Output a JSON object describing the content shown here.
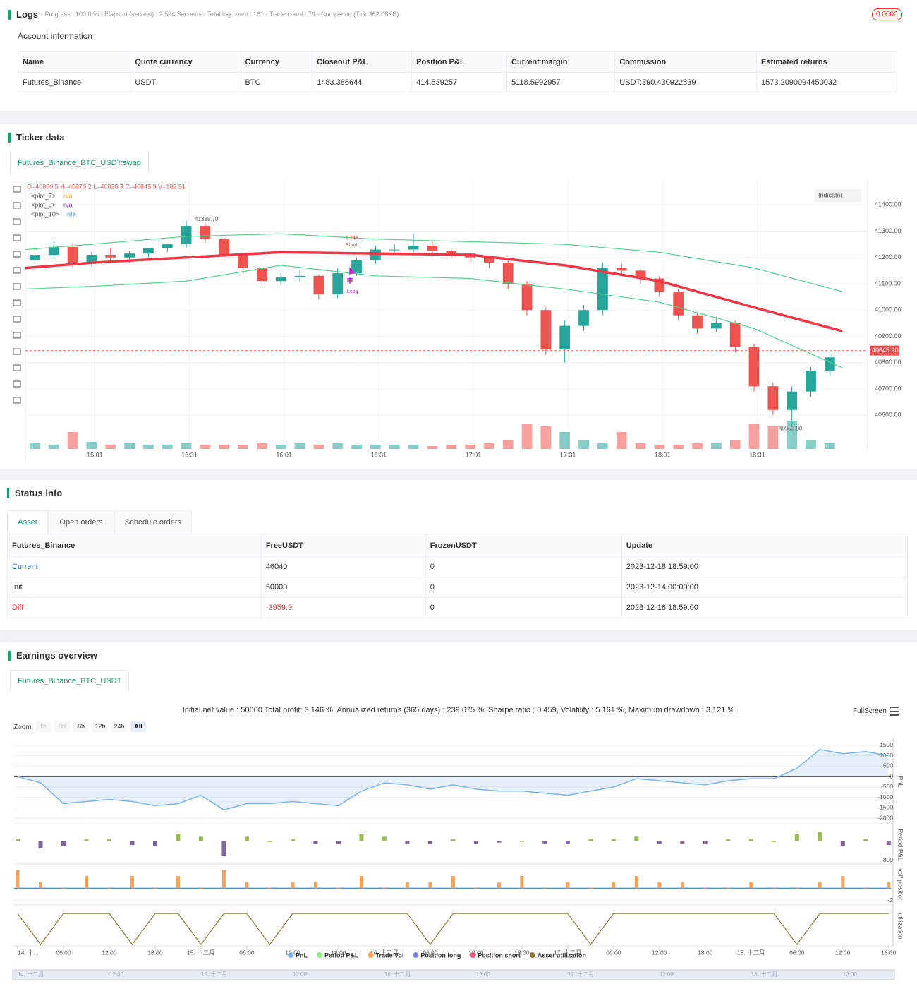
{
  "logs": {
    "title": "Logs",
    "summary": "- Progress : 100.0 % - Elapsed (second) : 2.594  Seconds - Total log count : 161 - Trade count : 79 - Completed (Tick 362.06KB)",
    "badge": "0.0000"
  },
  "account": {
    "title": "Account information",
    "headers": [
      "Name",
      "Quote currency",
      "Currency",
      "Closeout P&L",
      "Position P&L",
      "Current margin",
      "Commission",
      "Estimated returns"
    ],
    "rows": [
      [
        "Futures_Binance",
        "USDT",
        "BTC",
        "1483.386644",
        "414.539257",
        "5118.5992957",
        "USDT:390.430922839",
        "1573.2090094450032"
      ]
    ]
  },
  "ticker": {
    "title": "Ticker data",
    "tab": "Futures_Binance_BTC_USDT:swap",
    "ohlc": "O=40850.5 H=40870.2 L=40828.3 C=40845.9 V=182.51",
    "plots": [
      {
        "name": "<plot_7>",
        "value": "n/a",
        "color": "#f5a623"
      },
      {
        "name": "<plot_9>",
        "value": "n/a",
        "color": "#9b30c8"
      },
      {
        "name": "<plot_10>",
        "value": "n/a",
        "color": "#2f80ed"
      }
    ],
    "indicator": "Indicator",
    "trades": {
      "qty": "1.243",
      "short": "Short",
      "long": "Long"
    },
    "chart_data": {
      "type": "candlestick",
      "xlim": [
        39,
        306
      ],
      "ylim": [
        40520,
        41500
      ],
      "xticks": [
        {
          "value": 61,
          "label": "15:01"
        },
        {
          "value": 91,
          "label": "15:31"
        },
        {
          "value": 121,
          "label": "16:01"
        },
        {
          "value": 151,
          "label": "16:31"
        },
        {
          "value": 181,
          "label": "17:01"
        },
        {
          "value": 211,
          "label": "17:31"
        },
        {
          "value": 241,
          "label": "18:01"
        },
        {
          "value": 271,
          "label": "18:31"
        }
      ],
      "yticks": [
        {
          "value": 40600,
          "label": "40600.00"
        },
        {
          "value": 40700,
          "label": "40700.00"
        },
        {
          "value": 40800,
          "label": "40800.00"
        },
        {
          "value": 40900,
          "label": "40900.00"
        },
        {
          "value": 41000,
          "label": "41000.00"
        },
        {
          "value": 41100,
          "label": "41100.00"
        },
        {
          "value": 41200,
          "label": "41200.00"
        },
        {
          "value": 41300,
          "label": "41300.00"
        },
        {
          "value": 41400,
          "label": "41400.00"
        }
      ],
      "grid": true,
      "x": [
        42,
        48,
        54,
        60,
        66,
        72,
        78,
        84,
        90,
        96,
        102,
        108,
        114,
        120,
        126,
        132,
        138,
        144,
        150,
        156,
        162,
        168,
        174,
        180,
        186,
        192,
        198,
        204,
        210,
        216,
        222,
        228,
        234,
        240,
        246,
        252,
        258,
        264,
        270,
        276,
        282,
        288,
        294
      ],
      "open": [
        41190,
        41210,
        41240,
        41180,
        41210,
        41200,
        41215,
        41235,
        41250,
        41320,
        41270,
        41210,
        41160,
        41110,
        41125,
        41130,
        41060,
        41140,
        41190,
        41230,
        41230,
        41245,
        41225,
        41215,
        41200,
        41180,
        41100,
        41000,
        40850,
        40940,
        41000,
        41160,
        41150,
        41120,
        41070,
        40980,
        40930,
        40950,
        40860,
        40710,
        40620,
        40690,
        40770
      ],
      "high": [
        41230,
        41260,
        41255,
        41220,
        41235,
        41225,
        41230,
        41250,
        41338.7,
        41330,
        41275,
        41215,
        41165,
        41140,
        41150,
        41135,
        41160,
        41200,
        41245,
        41250,
        41290,
        41260,
        41235,
        41215,
        41200,
        41190,
        41110,
        41010,
        40960,
        41020,
        41180,
        41175,
        41155,
        41130,
        41080,
        40990,
        40975,
        40960,
        40870,
        40725,
        40710,
        40785,
        40840
      ],
      "low": [
        41170,
        41195,
        41160,
        41165,
        41185,
        41180,
        41200,
        41220,
        41235,
        41255,
        41190,
        41140,
        41090,
        41095,
        41105,
        41040,
        41045,
        41130,
        41175,
        41210,
        41215,
        41205,
        41195,
        41180,
        41160,
        41080,
        40980,
        40830,
        40800,
        40920,
        40980,
        41130,
        41100,
        41050,
        40960,
        40910,
        40915,
        40840,
        40690,
        40600,
        40553.8,
        40670,
        40750
      ],
      "close": [
        41210,
        41240,
        41180,
        41210,
        41200,
        41215,
        41235,
        41250,
        41320,
        41270,
        41210,
        41160,
        41110,
        41125,
        41130,
        41060,
        41140,
        41190,
        41230,
        41230,
        41245,
        41225,
        41215,
        41200,
        41180,
        41100,
        41000,
        40850,
        40940,
        41000,
        41160,
        41150,
        41120,
        41070,
        40980,
        40930,
        40950,
        40860,
        40710,
        40620,
        40690,
        40770,
        40820
      ],
      "volume": [
        20,
        15,
        60,
        25,
        15,
        20,
        15,
        15,
        20,
        15,
        15,
        15,
        20,
        15,
        20,
        15,
        20,
        15,
        15,
        15,
        15,
        10,
        15,
        15,
        20,
        30,
        90,
        80,
        60,
        30,
        20,
        60,
        20,
        15,
        15,
        20,
        20,
        30,
        90,
        80,
        100,
        30,
        20
      ],
      "up_color": "#26a69a",
      "down_color": "#ef5350",
      "lines": [
        {
          "color": "#f23645",
          "width": 3.5,
          "x": [
            39,
            60,
            90,
            120,
            150,
            180,
            210,
            240,
            270,
            298
          ],
          "values": [
            41160,
            41180,
            41200,
            41220,
            41215,
            41210,
            41170,
            41110,
            41010,
            40920
          ]
        },
        {
          "color": "#4cd68b",
          "width": 1.2,
          "x": [
            39,
            60,
            90,
            120,
            150,
            180,
            210,
            240,
            270,
            298
          ],
          "values": [
            41230,
            41250,
            41280,
            41290,
            41270,
            41260,
            41250,
            41220,
            41160,
            41070
          ]
        },
        {
          "color": "#4cd68b",
          "width": 1.2,
          "x": [
            39,
            60,
            90,
            120,
            150,
            180,
            210,
            240,
            270,
            298
          ],
          "values": [
            41080,
            41090,
            41110,
            41170,
            41130,
            41120,
            41080,
            41030,
            40930,
            40780
          ]
        }
      ],
      "price": {
        "value": 40845.9,
        "label": "40845.90"
      },
      "high_label": {
        "value": 41338.7,
        "label": "41338.70"
      },
      "low_label": {
        "value": 40553.8,
        "label": "40553.80"
      }
    }
  },
  "status": {
    "title": "Status info",
    "tabs": [
      "Asset",
      "Open orders",
      "Schedule orders"
    ],
    "headers": [
      "Futures_Binance",
      "FreeUSDT",
      "FrozenUSDT",
      "Update"
    ],
    "rows": [
      [
        "Current",
        "46040",
        "0",
        "2023-12-18 18:59:00"
      ],
      [
        "Init",
        "50000",
        "0",
        "2023-12-14 00:00:00"
      ],
      [
        "Diff",
        "-3959.9",
        "0",
        "2023-12-18 18:59:00"
      ]
    ]
  },
  "earnings": {
    "title": "Earnings overview",
    "tab": "Futures_Binance_BTC_USDT",
    "summary": "Initial net value : 50000 Total profit: 3.146 %, Annualized returns (365 days) : 239.675 %, Sharpe ratio : 0.459, Volatility : 5.161 %, Maximum drawdown : 3.121 %",
    "fullscreen": "FullScreen",
    "zoom": "Zoom",
    "zoom_buttons": [
      "1h",
      "3h",
      "8h",
      "12h",
      "24h",
      "All"
    ],
    "chart_data": {
      "type": "line",
      "xlim": [
        0,
        114.3
      ],
      "xticks": [
        {
          "value": 0,
          "label": "14. 十..."
        },
        {
          "value": 6,
          "label": "06:00"
        },
        {
          "value": 12,
          "label": "12:00"
        },
        {
          "value": 18,
          "label": "18:00"
        },
        {
          "value": 24,
          "label": "15. 十二月"
        },
        {
          "value": 30,
          "label": "06:00"
        },
        {
          "value": 36,
          "label": "12:00"
        },
        {
          "value": 42,
          "label": "18:00"
        },
        {
          "value": 48,
          "label": "16. 十二月"
        },
        {
          "value": 54,
          "label": "06:00"
        },
        {
          "value": 60,
          "label": "12:00"
        },
        {
          "value": 66,
          "label": "18:00"
        },
        {
          "value": 72,
          "label": "17. 十二月"
        },
        {
          "value": 78,
          "label": "06:00"
        },
        {
          "value": 84,
          "label": "12:00"
        },
        {
          "value": 90,
          "label": "18:00"
        },
        {
          "value": 96,
          "label": "18. 十二月"
        },
        {
          "value": 102,
          "label": "06:00"
        },
        {
          "value": 108,
          "label": "12:00"
        },
        {
          "value": 114,
          "label": "18:00"
        }
      ],
      "navigator_ticks": [
        {
          "value": 0,
          "label": "14. 十二月"
        },
        {
          "value": 12,
          "label": "12:00"
        },
        {
          "value": 24,
          "label": "15. 十二月"
        },
        {
          "value": 36,
          "label": "12:00"
        },
        {
          "value": 48,
          "label": "16. 十二月"
        },
        {
          "value": 60,
          "label": "12:00"
        },
        {
          "value": 72,
          "label": "17. 十二月"
        },
        {
          "value": 84,
          "label": "12:00"
        },
        {
          "value": 96,
          "label": "18. 十二月"
        },
        {
          "value": 108,
          "label": "12:00"
        }
      ],
      "x": [
        0,
        3,
        6,
        9,
        12,
        15,
        18,
        21,
        24,
        27,
        30,
        33,
        36,
        39,
        42,
        45,
        48,
        51,
        54,
        57,
        60,
        63,
        66,
        69,
        72,
        75,
        78,
        81,
        84,
        87,
        90,
        93,
        96,
        99,
        102,
        105,
        108,
        111,
        114
      ],
      "panels": [
        {
          "name": "PnL",
          "ylim": [
            -2200,
            1700
          ],
          "yticks": [
            1500,
            1000,
            500,
            0,
            -500,
            -1000,
            -1500,
            -2000
          ],
          "color": "#7cb5ec",
          "values": [
            0,
            -300,
            -1300,
            -1200,
            -1100,
            -1200,
            -1400,
            -1300,
            -900,
            -1600,
            -1300,
            -1300,
            -1200,
            -1300,
            -1400,
            -700,
            -300,
            -400,
            -600,
            -400,
            -600,
            -700,
            -700,
            -800,
            -900,
            -700,
            -500,
            -100,
            -200,
            -300,
            -400,
            -200,
            -100,
            -100,
            400,
            1300,
            1100,
            1200,
            1000
          ]
        },
        {
          "name": "Period P&L",
          "ylim": [
            -900,
            600
          ],
          "yticks": [
            -800
          ],
          "color": "#9bbb59",
          "negative_color": "#8064a2",
          "values": [
            100,
            -300,
            -200,
            100,
            100,
            -150,
            -200,
            300,
            200,
            -600,
            200,
            0,
            100,
            -100,
            -100,
            300,
            200,
            -100,
            -100,
            100,
            -100,
            -50,
            0,
            -100,
            -100,
            100,
            100,
            200,
            -100,
            -100,
            -100,
            100,
            100,
            0,
            300,
            400,
            -200,
            100,
            -150
          ]
        },
        {
          "name": "vol/ position",
          "ylim": [
            -2.5,
            3.5
          ],
          "yticks": [
            -2
          ],
          "color": "#f7a35c",
          "values": [
            3,
            1,
            0,
            2,
            0,
            2,
            0,
            2,
            0,
            3,
            1,
            0,
            1,
            1,
            0,
            2,
            0,
            1,
            1,
            2,
            0,
            1,
            2,
            0,
            1,
            0,
            1,
            2,
            1,
            1,
            0,
            0,
            1,
            0,
            0,
            1,
            2,
            0,
            1
          ]
        },
        {
          "name": "utilization",
          "ylim": [
            0,
            1.05
          ],
          "yticks": [],
          "color": "#8b7a3a",
          "values": [
            1,
            0,
            1,
            1,
            1,
            0,
            1,
            1,
            0,
            1,
            1,
            0,
            1,
            1,
            1,
            1,
            1,
            1,
            0,
            1,
            1,
            1,
            1,
            1,
            1,
            0,
            1,
            1,
            1,
            1,
            1,
            1,
            1,
            1,
            0,
            1,
            1,
            1,
            1
          ]
        }
      ],
      "legend": [
        {
          "name": "PnL",
          "color": "#7cb5ec"
        },
        {
          "name": "Period P&L",
          "color": "#90ed7d"
        },
        {
          "name": "Trade Vol",
          "color": "#f7a35c"
        },
        {
          "name": "Position long",
          "color": "#8085e9"
        },
        {
          "name": "Position short",
          "color": "#f15c80"
        },
        {
          "name": "Asset utilization",
          "color": "#8b7a3a"
        }
      ]
    }
  }
}
